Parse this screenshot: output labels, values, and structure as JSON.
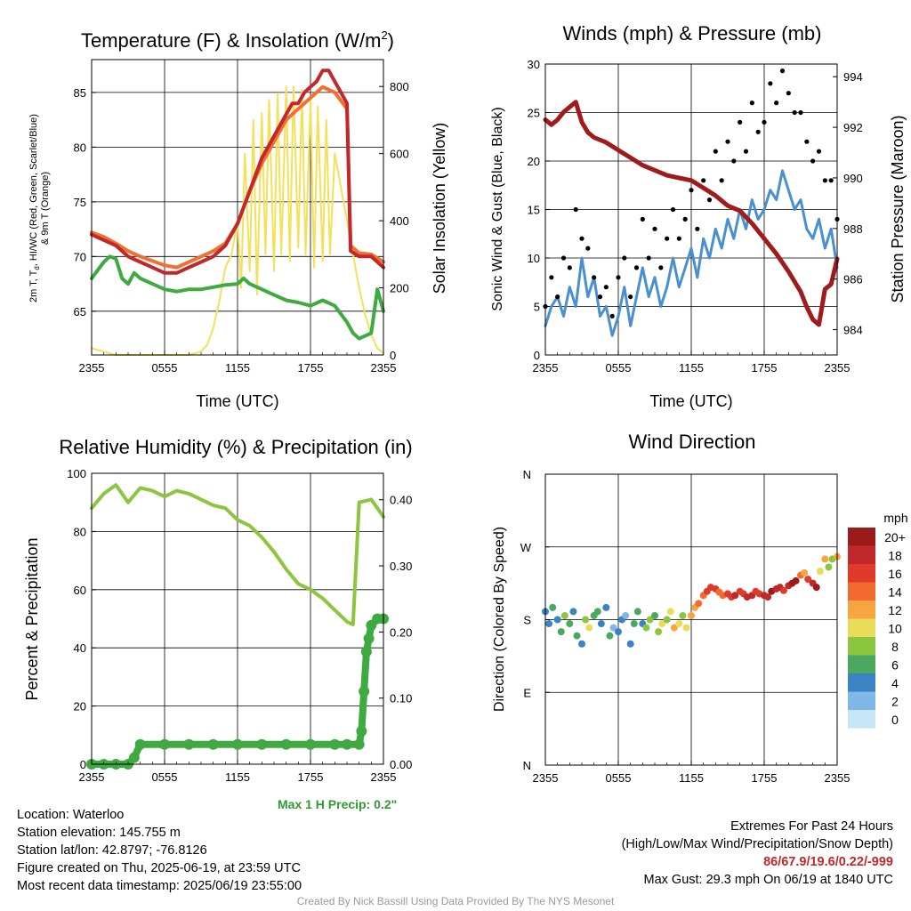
{
  "chart_data": [
    {
      "type": "line",
      "title": "Temperature (F) & Insolation (W/m²)",
      "xlabel": "Time (UTC)",
      "ylabel": "2m T, Td, HI/WC (Red, Green, Scarlet/Blue) & 9m T (Orange)",
      "y2label": "Solar Insolation (Yellow)",
      "x_ticks": [
        "2355",
        "0555",
        "1155",
        "1755",
        "2355"
      ],
      "ylim": [
        61,
        88
      ],
      "y_ticks": [
        65,
        70,
        75,
        80,
        85
      ],
      "y2lim": [
        0,
        880
      ],
      "y2_ticks": [
        0,
        200,
        400,
        600,
        800
      ],
      "grid": true,
      "series": [
        {
          "name": "2m T",
          "color": "#c0282b",
          "axis": "left",
          "x": [
            0,
            1,
            2,
            3,
            4,
            5,
            6,
            7,
            8,
            9,
            10,
            11,
            12,
            13,
            14,
            15,
            16,
            16.5,
            17,
            17.5,
            18,
            18.5,
            19,
            19.5,
            20,
            20.5,
            21,
            21.3,
            22,
            23,
            24
          ],
          "values": [
            72,
            71.5,
            71,
            70,
            69.5,
            69,
            68.5,
            68.5,
            69,
            69.5,
            70,
            71,
            73,
            76,
            79,
            81,
            83,
            84,
            84,
            85,
            85.5,
            86,
            87,
            87,
            86,
            85,
            84,
            70.5,
            70,
            70,
            69
          ]
        },
        {
          "name": "9m T",
          "color": "#f07030",
          "axis": "left",
          "x": [
            0,
            1,
            2,
            3,
            4,
            5,
            6,
            7,
            8,
            9,
            10,
            11,
            12,
            13,
            14,
            15,
            16,
            17,
            18,
            19,
            20,
            21,
            21.3,
            22,
            23,
            24
          ],
          "values": [
            72.2,
            71.8,
            71.2,
            70.5,
            70,
            69.6,
            69.2,
            69,
            69.5,
            70,
            70.5,
            71.2,
            73,
            76,
            78.5,
            80.5,
            82.5,
            83.5,
            84.5,
            85.5,
            85,
            83.5,
            71,
            70.3,
            70.2,
            69.5
          ]
        },
        {
          "name": "Td",
          "color": "#3faa3f",
          "axis": "left",
          "x": [
            0,
            1,
            1.5,
            2,
            2.5,
            3,
            3.5,
            4,
            5,
            6,
            7,
            8,
            9,
            10,
            11,
            12,
            12.5,
            13,
            14,
            15,
            16,
            17,
            18,
            19,
            20,
            21,
            21.5,
            22,
            23,
            23.5,
            24
          ],
          "values": [
            68,
            69.5,
            70,
            69.8,
            68,
            67.5,
            68.5,
            68,
            67.5,
            67,
            66.8,
            67,
            67,
            67.2,
            67.4,
            67.5,
            68,
            67.5,
            67,
            66.5,
            66,
            65.8,
            65.5,
            66,
            65.5,
            64,
            63,
            62.5,
            63,
            67,
            65
          ]
        },
        {
          "name": "Solar Insolation",
          "color": "#f5e05a",
          "axis": "right",
          "x": [
            0,
            2,
            4,
            6,
            8,
            9,
            9.5,
            10,
            10.5,
            11,
            11.5,
            12,
            12.3,
            12.6,
            13,
            13.3,
            13.6,
            14,
            14.3,
            14.6,
            15,
            15.3,
            15.6,
            16,
            16.3,
            16.6,
            17,
            17.3,
            17.6,
            18,
            18.3,
            18.6,
            19,
            19.3,
            19.6,
            20,
            20.5,
            21,
            21.5,
            22,
            22.5,
            23,
            23.5,
            24
          ],
          "values": [
            20,
            0,
            0,
            0,
            0,
            10,
            30,
            80,
            160,
            260,
            300,
            400,
            200,
            600,
            250,
            700,
            180,
            720,
            300,
            760,
            250,
            780,
            300,
            800,
            280,
            800,
            320,
            790,
            300,
            760,
            260,
            740,
            280,
            700,
            300,
            600,
            500,
            400,
            300,
            200,
            120,
            60,
            20,
            5
          ]
        }
      ]
    },
    {
      "type": "line",
      "title": "Winds (mph) & Pressure (mb)",
      "xlabel": "Time (UTC)",
      "ylabel": "Sonic Wind & Gust (Blue, Black)",
      "y2label": "Station Pressure (Maroon)",
      "x_ticks": [
        "2355",
        "0555",
        "1155",
        "1755",
        "2355"
      ],
      "ylim": [
        0,
        30
      ],
      "y_ticks": [
        0,
        5,
        10,
        15,
        20,
        25,
        30
      ],
      "y2lim": [
        983,
        994.5
      ],
      "y2_ticks": [
        984,
        986,
        988,
        990,
        992,
        994
      ],
      "grid": true,
      "series": [
        {
          "name": "Sonic Wind",
          "color": "#4a90d0",
          "axis": "left",
          "x": [
            0,
            0.5,
            1,
            1.5,
            2,
            2.5,
            3,
            3.5,
            4,
            4.5,
            5,
            5.5,
            6,
            6.5,
            7,
            7.5,
            8,
            8.5,
            9,
            9.5,
            10,
            10.5,
            11,
            11.5,
            12,
            12.5,
            13,
            13.5,
            14,
            14.5,
            15,
            15.5,
            16,
            16.5,
            17,
            17.5,
            18,
            18.5,
            19,
            19.5,
            20,
            20.5,
            21,
            21.5,
            22,
            22.5,
            23,
            23.5,
            24
          ],
          "values": [
            3,
            5,
            6,
            4,
            7,
            5,
            10,
            6,
            8,
            4,
            5,
            2,
            4,
            7,
            3,
            6,
            9,
            6,
            8,
            5,
            7,
            10,
            7,
            9,
            11,
            8,
            12,
            10,
            13,
            11,
            14,
            12,
            15,
            13,
            16,
            14,
            15,
            17,
            16,
            19,
            17,
            15,
            16,
            13,
            12,
            14,
            11,
            13,
            9
          ]
        },
        {
          "name": "Gust",
          "color": "#000000",
          "axis": "left",
          "points": true,
          "x": [
            0,
            0.5,
            1,
            1.5,
            2,
            2.5,
            3,
            3.5,
            4,
            4.5,
            5,
            5.5,
            6,
            6.5,
            7,
            7.5,
            8,
            8.5,
            9,
            9.5,
            10,
            10.5,
            11,
            11.5,
            12,
            12.5,
            13,
            13.5,
            14,
            14.5,
            15,
            15.5,
            16,
            16.5,
            17,
            17.5,
            18,
            18.5,
            19,
            19.5,
            20,
            20.5,
            21,
            21.5,
            22,
            22.5,
            23,
            23.5,
            24
          ],
          "values": [
            5,
            8,
            6,
            10,
            9,
            15,
            12,
            11,
            8,
            6,
            7,
            4,
            8,
            10,
            6,
            9,
            14,
            10,
            13,
            9,
            12,
            15,
            12,
            14,
            17,
            13,
            18,
            16,
            21,
            18,
            22,
            20,
            24,
            21,
            26,
            23,
            24,
            28,
            26,
            29.3,
            27,
            25,
            25,
            22,
            20,
            21,
            18,
            18,
            14
          ]
        },
        {
          "name": "Station Pressure",
          "color": "#a01c1c",
          "axis": "right",
          "x": [
            0,
            0.5,
            1,
            1.5,
            2,
            2.5,
            3,
            3.5,
            4,
            5,
            6,
            7,
            8,
            9,
            10,
            11,
            12,
            13,
            14,
            15,
            16,
            17,
            18,
            19,
            20,
            21,
            21.5,
            22,
            22.5,
            23,
            23.5,
            24
          ],
          "values": [
            992.3,
            992.1,
            992.3,
            992.6,
            992.8,
            993,
            992.2,
            991.8,
            991.6,
            991.4,
            991.1,
            990.8,
            990.5,
            990.3,
            990.1,
            990.0,
            989.9,
            989.6,
            989.3,
            988.9,
            988.7,
            988.2,
            987.6,
            987.0,
            986.3,
            985.5,
            984.9,
            984.4,
            984.2,
            985.6,
            985.8,
            986.8
          ]
        }
      ]
    },
    {
      "type": "line",
      "title": "Relative Humidity (%) & Precipitation (in)",
      "ylabel": "Percent & Precipitation",
      "x_ticks": [
        "2355",
        "0555",
        "1155",
        "1755",
        "2355"
      ],
      "ylim": [
        0,
        100
      ],
      "y_ticks": [
        0,
        20,
        40,
        60,
        80,
        100
      ],
      "y2lim": [
        0,
        0.44
      ],
      "y2_ticks": [
        "0.00",
        "0.10",
        "0.20",
        "0.30",
        "0.40"
      ],
      "grid": true,
      "series": [
        {
          "name": "Relative Humidity",
          "color": "#8cc63f",
          "axis": "left",
          "x": [
            0,
            1,
            2,
            3,
            4,
            5,
            6,
            7,
            8,
            9,
            10,
            11,
            12,
            13,
            14,
            15,
            16,
            17,
            18,
            19,
            20,
            21,
            21.5,
            22,
            23,
            24
          ],
          "values": [
            88,
            93,
            96,
            90,
            95,
            94,
            92,
            94,
            93,
            91,
            89,
            88,
            84,
            82,
            78,
            73,
            67,
            62,
            60,
            57,
            53,
            49,
            48,
            90,
            91,
            85
          ]
        },
        {
          "name": "Precipitation",
          "color": "#3faa3f",
          "axis": "right",
          "points": true,
          "x": [
            0,
            1,
            2,
            3,
            3.5,
            4,
            6,
            8,
            10,
            12,
            14,
            16,
            18,
            20,
            21,
            22,
            22.2,
            22.4,
            22.6,
            22.8,
            23,
            23.5,
            24
          ],
          "values": [
            0,
            0,
            0,
            0,
            0.01,
            0.03,
            0.03,
            0.03,
            0.03,
            0.03,
            0.03,
            0.03,
            0.03,
            0.03,
            0.03,
            0.03,
            0.05,
            0.11,
            0.17,
            0.19,
            0.21,
            0.22,
            0.22
          ]
        }
      ]
    },
    {
      "type": "scatter",
      "title": "Wind Direction",
      "ylabel": "Direction (Colored By Speed)",
      "x_ticks": [
        "2355",
        "0555",
        "1155",
        "1755",
        "2355"
      ],
      "y_ticks": [
        "N",
        "E",
        "S",
        "W",
        "N"
      ],
      "ylim": [
        0,
        360
      ],
      "colorbar": {
        "title": "mph",
        "labels": [
          "20+",
          "18",
          "16",
          "14",
          "12",
          "10",
          "8",
          "6",
          "4",
          "2",
          "0"
        ]
      },
      "grid": true,
      "x": [
        0,
        0.3,
        0.6,
        1,
        1.3,
        1.6,
        2,
        2.3,
        2.6,
        3,
        3.3,
        3.6,
        4,
        4.3,
        4.6,
        5,
        5.3,
        5.6,
        6,
        6.3,
        6.6,
        7,
        7.3,
        7.6,
        8,
        8.3,
        8.6,
        9,
        9.3,
        9.6,
        10,
        10.3,
        10.6,
        11,
        11.3,
        11.6,
        12,
        12.3,
        12.6,
        13,
        13.3,
        13.6,
        14,
        14.3,
        14.6,
        15,
        15.3,
        15.6,
        16,
        16.3,
        16.6,
        17,
        17.3,
        17.6,
        18,
        18.3,
        18.6,
        19,
        19.3,
        19.6,
        20,
        20.3,
        20.6,
        21,
        21.3,
        21.6,
        22,
        22.3,
        22.6,
        23,
        23.3,
        23.6,
        24
      ],
      "values": [
        190,
        175,
        195,
        180,
        165,
        185,
        175,
        190,
        160,
        150,
        180,
        170,
        185,
        190,
        175,
        195,
        160,
        170,
        165,
        180,
        185,
        150,
        175,
        190,
        175,
        170,
        180,
        185,
        165,
        175,
        180,
        190,
        170,
        175,
        185,
        170,
        185,
        195,
        200,
        210,
        215,
        220,
        218,
        214,
        210,
        212,
        208,
        210,
        215,
        212,
        208,
        210,
        215,
        212,
        210,
        208,
        215,
        218,
        220,
        216,
        222,
        225,
        228,
        235,
        238,
        230,
        225,
        220,
        240,
        255,
        245,
        255,
        258
      ],
      "speeds": [
        4,
        3,
        5,
        4,
        6,
        7,
        5,
        3,
        6,
        4,
        8,
        10,
        6,
        5,
        4,
        3,
        5,
        2,
        3,
        4,
        2,
        4,
        5,
        6,
        4,
        8,
        7,
        6,
        8,
        10,
        7,
        9,
        12,
        10,
        8,
        9,
        11,
        12,
        13,
        14,
        15,
        16,
        15,
        14,
        13,
        15,
        16,
        17,
        15,
        16,
        18,
        17,
        16,
        15,
        17,
        18,
        19,
        17,
        18,
        16,
        18,
        19,
        20,
        14,
        12,
        16,
        18,
        20,
        10,
        12,
        8,
        7,
        11
      ]
    }
  ],
  "panels": {
    "temp": {
      "title": "Temperature (F) & Insolation (W/m",
      "title_sup": "2",
      "title_end": ")",
      "xlabel": "Time (UTC)",
      "ylabel_line1": "2m T, T",
      "ylabel_sub": "d",
      "ylabel_rest": ", HI/WC (Red, Green, Scarlet/Blue)",
      "ylabel_line2": "& 9m T (Orange)",
      "y2label": "Solar Insolation (Yellow)"
    },
    "wind": {
      "title": "Winds (mph) & Pressure (mb)",
      "xlabel": "Time (UTC)",
      "ylabel": "Sonic Wind & Gust (Blue, Black)",
      "y2label": "Station Pressure (Maroon)"
    },
    "rh": {
      "title": "Relative Humidity (%) & Precipitation (in)",
      "ylabel": "Percent & Precipitation"
    },
    "dir": {
      "title": "Wind Direction",
      "ylabel": "Direction (Colored By Speed)"
    }
  },
  "precip_note": "Max 1 H Precip: 0.2\"",
  "info_left": {
    "location": "Location: Waterloo",
    "elevation": "Station elevation: 145.755 m",
    "latlon": "Station lat/lon: 42.8797; -76.8126",
    "created": "Figure created on Thu, 2025-06-19, at 23:59 UTC",
    "recent": "Most recent data timestamp: 2025/06/19 23:55:00"
  },
  "info_right": {
    "line1": "Extremes For Past 24 Hours",
    "line2": "(High/Low/Max Wind/Precipitation/Snow Depth)",
    "extremes": "86/67.9/19.6/0.22/-999",
    "gust": "Max Gust: 29.3 mph On 06/19 at 1840 UTC"
  },
  "credit": "Created By Nick Bassill Using Data Provided By The NYS Mesonet",
  "colors": {
    "colorbar": [
      "#9b1b1b",
      "#c0282b",
      "#e03a2a",
      "#f26a2e",
      "#f7a540",
      "#e9dc5a",
      "#8cc63f",
      "#4aa860",
      "#3a83c4",
      "#7fb8e6",
      "#c6e6f8"
    ]
  }
}
